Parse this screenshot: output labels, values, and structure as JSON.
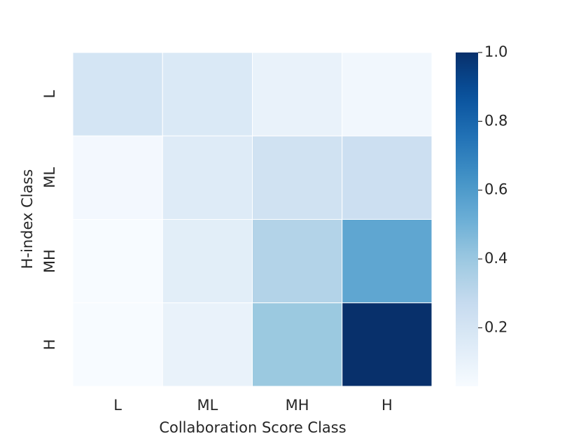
{
  "chart_data": {
    "type": "heatmap",
    "x_label": "Collaboration Score Class",
    "y_label": "H-index Class",
    "x_categories": [
      "L",
      "ML",
      "MH",
      "H"
    ],
    "y_categories": [
      "L",
      "ML",
      "MH",
      "H"
    ],
    "values": [
      [
        0.2,
        0.17,
        0.1,
        0.06
      ],
      [
        0.05,
        0.15,
        0.22,
        0.24
      ],
      [
        0.03,
        0.13,
        0.33,
        0.55
      ],
      [
        0.03,
        0.1,
        0.4,
        1.0
      ]
    ],
    "colormap": "Blues",
    "clim": [
      0.03,
      1.0
    ],
    "colorbar_ticks": [
      0.2,
      0.4,
      0.6,
      0.8,
      {
        "value": 1,
        "label": "1.0"
      }
    ]
  }
}
